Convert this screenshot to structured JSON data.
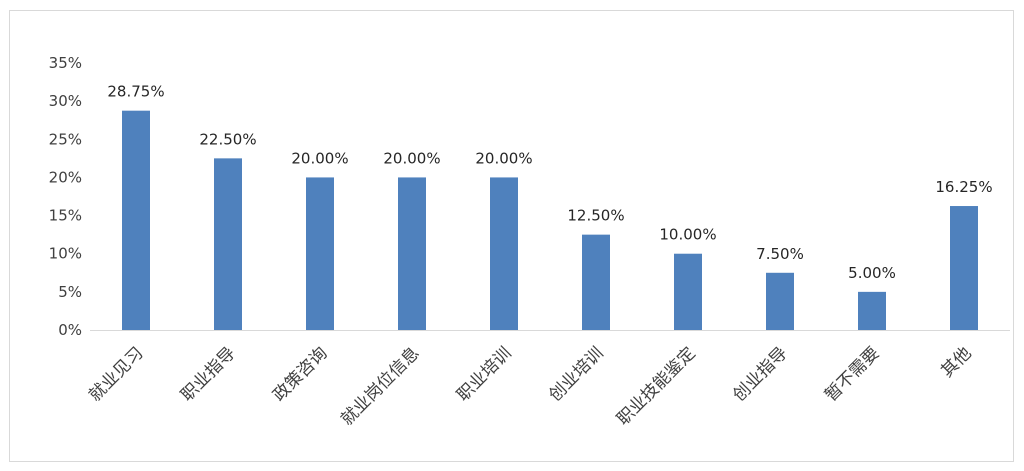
{
  "chart_data": {
    "type": "bar",
    "categories": [
      "就业见习",
      "职业指导",
      "政策咨询",
      "就业岗位信息",
      "职业培训",
      "创业培训",
      "职业技能鉴定",
      "创业指导",
      "暂不需要",
      "其他"
    ],
    "values": [
      28.75,
      22.5,
      20.0,
      20.0,
      20.0,
      12.5,
      10.0,
      7.5,
      5.0,
      16.25
    ],
    "data_labels": [
      "28.75%",
      "22.50%",
      "20.00%",
      "20.00%",
      "20.00%",
      "12.50%",
      "10.00%",
      "7.50%",
      "5.00%",
      "16.25%"
    ],
    "y_ticks": [
      0,
      5,
      10,
      15,
      20,
      25,
      30,
      35
    ],
    "y_tick_labels": [
      "0%",
      "5%",
      "10%",
      "15%",
      "20%",
      "25%",
      "30%",
      "35%"
    ],
    "ylim": [
      0,
      35
    ],
    "title": "",
    "xlabel": "",
    "ylabel": "",
    "grid": false,
    "legend": false,
    "bar_color": "#4f81bd",
    "axis_color": "#d9d9d9"
  }
}
